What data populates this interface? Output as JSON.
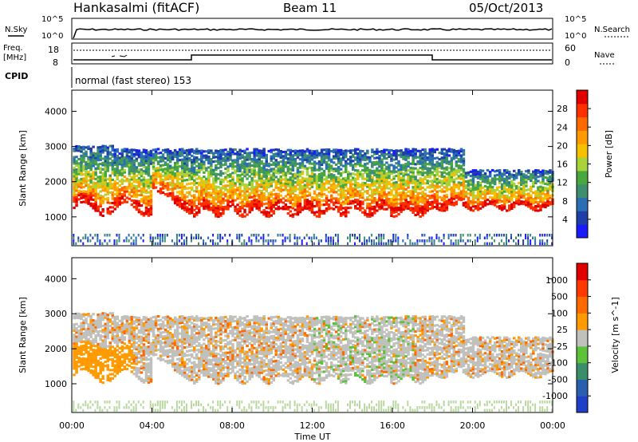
{
  "header": {
    "station": "Hankasalmi (fitACF)",
    "beam": "Beam 11",
    "date": "05/Oct/2013"
  },
  "noise_panel": {
    "left_label": "N.Sky",
    "right_label": "N.Search",
    "tick_top": "10^5",
    "tick_bottom": "10^0"
  },
  "freq_panel": {
    "left_label_1": "Freq.",
    "left_label_2": "[MHz]",
    "tick_top_left": "18",
    "tick_bottom_left": "8",
    "tick_top_right": "60",
    "tick_bottom_right": "0",
    "right_label": "Nave"
  },
  "cpid": {
    "label": "CPID",
    "value": "normal (fast stereo) 153"
  },
  "chart_data": [
    {
      "type": "heatmap",
      "quantity": "Power",
      "ylabel": "Slant Range [km]",
      "ylim": [
        180,
        4600
      ],
      "yticks": [
        "1000",
        "2000",
        "3000",
        "4000"
      ],
      "xlim_hours": [
        0,
        24
      ],
      "colorbar": {
        "label": "Power [dB]",
        "ticks": [
          "4",
          "8",
          "12",
          "16",
          "20",
          "24",
          "28"
        ],
        "colors": [
          "#1a1aff",
          "#1f3fa8",
          "#2a6fb4",
          "#3f8f6f",
          "#49a83d",
          "#a9d23b",
          "#f4c000",
          "#ff9a00",
          "#ff6a00",
          "#ff3000",
          "#e00000"
        ]
      }
    },
    {
      "type": "heatmap",
      "quantity": "Velocity",
      "ylabel": "Slant Range [km]",
      "ylim": [
        180,
        4600
      ],
      "yticks": [
        "1000",
        "2000",
        "3000",
        "4000"
      ],
      "xlim_hours": [
        0,
        24
      ],
      "colorbar": {
        "label": "Velocity [m s^-1]",
        "ticks": [
          "1000",
          "500",
          "100",
          "25",
          "-25",
          "-100",
          "-500",
          "-1000"
        ],
        "colors": [
          "#1f3fc8",
          "#2a5fb0",
          "#3a8f6a",
          "#5cc23a",
          "#c0c0bc",
          "#ff9a00",
          "#ff6a00",
          "#ff3a00",
          "#e00000"
        ]
      }
    }
  ],
  "x_axis": {
    "ticks": [
      "00:00",
      "04:00",
      "08:00",
      "12:00",
      "16:00",
      "20:00",
      "00:00"
    ],
    "label": "Time UT"
  }
}
